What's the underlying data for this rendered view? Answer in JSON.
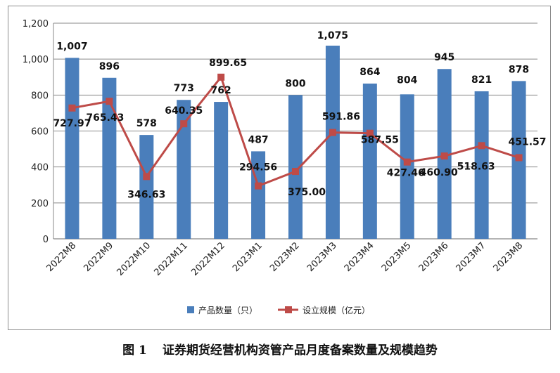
{
  "chart_data": {
    "type": "bar+line",
    "categories": [
      "2022M8",
      "2022M9",
      "2022M10",
      "2022M11",
      "2022M12",
      "2023M1",
      "2023M2",
      "2023M3",
      "2023M4",
      "2023M5",
      "2023M6",
      "2023M7",
      "2023M8"
    ],
    "series": [
      {
        "name": "产品数量（只）",
        "type": "bar",
        "color": "#4a7ebb",
        "values": [
          1007,
          896,
          578,
          773,
          762,
          487,
          800,
          1075,
          864,
          804,
          945,
          821,
          878
        ],
        "labels": [
          "1,007",
          "896",
          "578",
          "773",
          "762",
          "487",
          "800",
          "1,075",
          "864",
          "804",
          "945",
          "821",
          "878"
        ]
      },
      {
        "name": "设立规模（亿元）",
        "type": "line",
        "color": "#be4b48",
        "values": [
          727.97,
          765.43,
          346.63,
          640.35,
          899.65,
          294.56,
          375.0,
          591.86,
          587.55,
          427.46,
          460.9,
          518.63,
          451.57
        ],
        "labels": [
          "727.97",
          "765.43",
          "346.63",
          "640.35",
          "899.65",
          "294.56",
          "375.00",
          "591.86",
          "587.55",
          "427.46",
          "460.90",
          "518.63",
          "451.57"
        ]
      }
    ],
    "y_ticks": [
      "0",
      "200",
      "400",
      "600",
      "800",
      "1,000",
      "1,200"
    ],
    "ylim": [
      0,
      1200
    ],
    "grid": true,
    "legend_position": "bottom"
  },
  "caption": {
    "figure_number": "图 1",
    "title": "证券期货经营机构资管产品月度备案数量及规模趋势"
  }
}
